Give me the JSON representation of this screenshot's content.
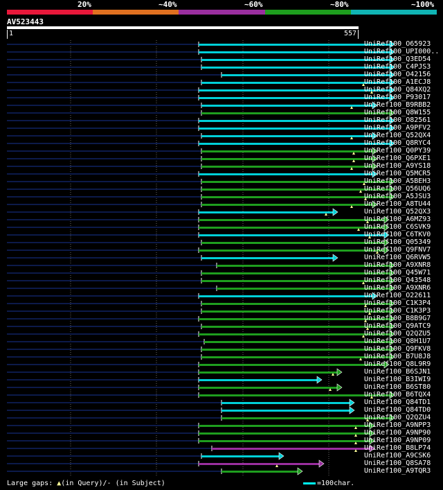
{
  "header": {
    "percent_labels": [
      "20%",
      "~40%",
      "~60%",
      "~80%",
      "~100%"
    ],
    "percent_colors": [
      "#e8183a",
      "#e07020",
      "#9a2f9f",
      "#1e9e1e",
      "#10b4b4"
    ]
  },
  "query": {
    "title": "AV523443",
    "start": "1",
    "end": "557",
    "length": 557
  },
  "grid": {
    "color": "#6a6a6a"
  },
  "hits": [
    {
      "name": "UniRef100_O65923",
      "start": 287,
      "end": 570,
      "color": "#00d0d8",
      "gaps": []
    },
    {
      "name": "UniRef100_UPI000..",
      "start": 287,
      "end": 570,
      "color": "#00d0d8",
      "gaps": []
    },
    {
      "name": "UniRef100_Q3ED54",
      "start": 291,
      "end": 570,
      "color": "#00d0d8",
      "gaps": []
    },
    {
      "name": "UniRef100_C4PJS3",
      "start": 291,
      "end": 570,
      "color": "#00d0d8",
      "gaps": []
    },
    {
      "name": "UniRef100_O42156",
      "start": 320,
      "end": 570,
      "color": "#00d0d8",
      "gaps": []
    },
    {
      "name": "UniRef100_A1ECJ8",
      "start": 291,
      "end": 570,
      "color": "#00d0d8",
      "gaps": [
        525
      ]
    },
    {
      "name": "UniRef100_Q84XQ2",
      "start": 287,
      "end": 570,
      "color": "#00d0d8",
      "gaps": [
        537
      ]
    },
    {
      "name": "UniRef100_P93017",
      "start": 287,
      "end": 570,
      "color": "#00d0d8",
      "gaps": []
    },
    {
      "name": "UniRef100_B9RBB2",
      "start": 291,
      "end": 545,
      "color": "#00d0d8",
      "gaps": [
        508
      ]
    },
    {
      "name": "UniRef100_Q8W155",
      "start": 291,
      "end": 570,
      "color": "#1e9e1e",
      "gaps": []
    },
    {
      "name": "UniRef100_O82561",
      "start": 287,
      "end": 570,
      "color": "#00d0d8",
      "gaps": []
    },
    {
      "name": "UniRef100_A9PFV2",
      "start": 287,
      "end": 570,
      "color": "#00d0d8",
      "gaps": []
    },
    {
      "name": "UniRef100_Q52QX4",
      "start": 291,
      "end": 545,
      "color": "#00d0d8",
      "gaps": [
        508
      ]
    },
    {
      "name": "UniRef100_Q8RYC4",
      "start": 287,
      "end": 570,
      "color": "#00d0d8",
      "gaps": []
    },
    {
      "name": "UniRef100_Q0PY39",
      "start": 291,
      "end": 545,
      "color": "#1e9e1e",
      "gaps": [
        511
      ]
    },
    {
      "name": "UniRef100_Q6PXE1",
      "start": 291,
      "end": 545,
      "color": "#1e9e1e",
      "gaps": [
        511
      ]
    },
    {
      "name": "UniRef100_A9YS18",
      "start": 291,
      "end": 545,
      "color": "#1e9e1e",
      "gaps": [
        508
      ]
    },
    {
      "name": "UniRef100_Q5MCR5",
      "start": 287,
      "end": 545,
      "color": "#00d0d8",
      "gaps": []
    },
    {
      "name": "UniRef100_A5BEH3",
      "start": 291,
      "end": 570,
      "color": "#1e9e1e",
      "gaps": [
        526
      ]
    },
    {
      "name": "UniRef100_Q56UQ6",
      "start": 291,
      "end": 570,
      "color": "#1e9e1e",
      "gaps": [
        521
      ]
    },
    {
      "name": "UniRef100_A5JSU3",
      "start": 291,
      "end": 570,
      "color": "#1e9e1e",
      "gaps": [
        528
      ]
    },
    {
      "name": "UniRef100_A8TU44",
      "start": 291,
      "end": 545,
      "color": "#1e9e1e",
      "gaps": [
        508
      ]
    },
    {
      "name": "UniRef100_Q52QX3",
      "start": 287,
      "end": 488,
      "color": "#00d0d8",
      "gaps": [
        471
      ]
    },
    {
      "name": "UniRef100_A6MZ93",
      "start": 287,
      "end": 562,
      "color": "#1e9e1e",
      "gaps": [
        531
      ]
    },
    {
      "name": "UniRef100_C6SVK9",
      "start": 287,
      "end": 562,
      "color": "#1e9e1e",
      "gaps": [
        518
      ]
    },
    {
      "name": "UniRef100_C6TKV0",
      "start": 287,
      "end": 562,
      "color": "#00d0d8",
      "gaps": [
        534
      ]
    },
    {
      "name": "UniRef100_Q05349",
      "start": 291,
      "end": 562,
      "color": "#1e9e1e",
      "gaps": []
    },
    {
      "name": "UniRef100_Q9FNV7",
      "start": 287,
      "end": 562,
      "color": "#1e9e1e",
      "gaps": [
        545
      ]
    },
    {
      "name": "UniRef100_Q6RVW5",
      "start": 291,
      "end": 488,
      "color": "#00d0d8",
      "gaps": []
    },
    {
      "name": "UniRef100_A9XNR8",
      "start": 313,
      "end": 570,
      "color": "#1e9e1e",
      "gaps": []
    },
    {
      "name": "UniRef100_Q45W71",
      "start": 291,
      "end": 570,
      "color": "#1e9e1e",
      "gaps": []
    },
    {
      "name": "UniRef100_Q43548",
      "start": 291,
      "end": 570,
      "color": "#1e9e1e",
      "gaps": [
        525
      ]
    },
    {
      "name": "UniRef100_A9XNR6",
      "start": 313,
      "end": 570,
      "color": "#1e9e1e",
      "gaps": []
    },
    {
      "name": "UniRef100_O22611",
      "start": 287,
      "end": 545,
      "color": "#00d0d8",
      "gaps": []
    },
    {
      "name": "UniRef100_C1K3P4",
      "start": 291,
      "end": 570,
      "color": "#1e9e1e",
      "gaps": [
        528
      ]
    },
    {
      "name": "UniRef100_C1K3P3",
      "start": 291,
      "end": 570,
      "color": "#1e9e1e",
      "gaps": [
        534
      ]
    },
    {
      "name": "UniRef100_B8B9G7",
      "start": 287,
      "end": 570,
      "color": "#1e9e1e",
      "gaps": [
        528
      ]
    },
    {
      "name": "UniRef100_Q9ATC9",
      "start": 291,
      "end": 570,
      "color": "#1e9e1e",
      "gaps": [
        531
      ]
    },
    {
      "name": "UniRef100_Q2QZU5",
      "start": 287,
      "end": 570,
      "color": "#1e9e1e",
      "gaps": [
        525
      ]
    },
    {
      "name": "UniRef100_Q8H1U7",
      "start": 295,
      "end": 570,
      "color": "#1e9e1e",
      "gaps": []
    },
    {
      "name": "UniRef100_Q9FKV8",
      "start": 291,
      "end": 570,
      "color": "#1e9e1e",
      "gaps": []
    },
    {
      "name": "UniRef100_B7U8J8",
      "start": 291,
      "end": 570,
      "color": "#1e9e1e",
      "gaps": [
        521
      ]
    },
    {
      "name": "UniRef100_Q8L9R9",
      "start": 287,
      "end": 562,
      "color": "#1e9e1e",
      "gaps": []
    },
    {
      "name": "UniRef100_B6SJN1",
      "start": 287,
      "end": 494,
      "color": "#1e9e1e",
      "gaps": [
        481
      ]
    },
    {
      "name": "UniRef100_B3IWI9",
      "start": 287,
      "end": 465,
      "color": "#00d0d8",
      "gaps": []
    },
    {
      "name": "UniRef100_B6ST80",
      "start": 287,
      "end": 494,
      "color": "#1e9e1e",
      "gaps": [
        477
      ]
    },
    {
      "name": "UniRef100_B6TQX4",
      "start": 287,
      "end": 570,
      "color": "#1e9e1e",
      "gaps": [
        537
      ]
    },
    {
      "name": "UniRef100_Q84TD1",
      "start": 320,
      "end": 512,
      "color": "#00d0d8",
      "gaps": []
    },
    {
      "name": "UniRef100_Q84TD0",
      "start": 320,
      "end": 512,
      "color": "#00d0d8",
      "gaps": []
    },
    {
      "name": "UniRef100_Q2QZU4",
      "start": 320,
      "end": 570,
      "color": "#1e9e1e",
      "gaps": [
        531
      ]
    },
    {
      "name": "UniRef100_A9NPP3",
      "start": 287,
      "end": 541,
      "color": "#1e9e1e",
      "gaps": [
        514
      ]
    },
    {
      "name": "UniRef100_A9NP90",
      "start": 287,
      "end": 541,
      "color": "#1e9e1e",
      "gaps": [
        514
      ]
    },
    {
      "name": "UniRef100_A9NP09",
      "start": 287,
      "end": 541,
      "color": "#1e9e1e",
      "gaps": [
        514
      ]
    },
    {
      "name": "UniRef100_B8LP74",
      "start": 306,
      "end": 541,
      "color": "#9a2f9f",
      "gaps": [
        514
      ]
    },
    {
      "name": "UniRef100_A9CSK6",
      "start": 291,
      "end": 410,
      "color": "#00d0d8",
      "gaps": []
    },
    {
      "name": "UniRef100_Q8SA78",
      "start": 287,
      "end": 468,
      "color": "#9a2f9f",
      "gaps": [
        400
      ]
    },
    {
      "name": "UniRef100_A9TQR3",
      "start": 320,
      "end": 437,
      "color": "#1e9e1e",
      "gaps": []
    }
  ],
  "footer": {
    "large_gaps_label": "Large gaps:",
    "in_query_marker": "▲",
    "in_query_text": "(in Query)/",
    "in_subject_marker": "-",
    "in_subject_text": " (in Subject)",
    "scale_text": "=100char."
  }
}
